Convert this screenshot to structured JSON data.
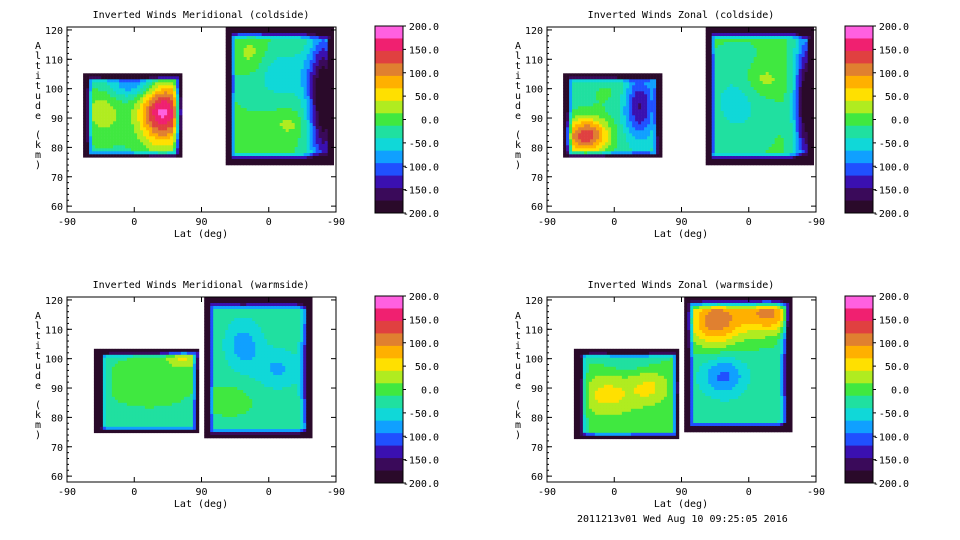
{
  "chart_data": [
    {
      "type": "heatmap",
      "title": "Inverted Winds Meridional (coldside)",
      "xlabel": "Lat (deg)",
      "ylabel": "Altitude (km)",
      "x_ticks": [
        "-90",
        "0",
        "90",
        "0",
        "-90"
      ],
      "y_ticks": [
        "60",
        "70",
        "80",
        "90",
        "100",
        "110",
        "120"
      ],
      "ylim": [
        58,
        121
      ],
      "colorbar_ticks": [
        "200.0",
        "150.0",
        "100.0",
        "50.0",
        "0.0",
        "-50.0",
        "-100.0",
        "-150.0",
        "-200.0"
      ],
      "colorbar_range": [
        -200,
        200
      ],
      "contour_lines": true
    },
    {
      "type": "heatmap",
      "title": "Inverted Winds Zonal (coldside)",
      "xlabel": "Lat (deg)",
      "ylabel": "Altitude (km)",
      "x_ticks": [
        "-90",
        "0",
        "90",
        "0",
        "-90"
      ],
      "y_ticks": [
        "60",
        "70",
        "80",
        "90",
        "100",
        "110",
        "120"
      ],
      "ylim": [
        58,
        121
      ],
      "colorbar_ticks": [
        "200.0",
        "150.0",
        "100.0",
        "50.0",
        "0.0",
        "-50.0",
        "-100.0",
        "-150.0",
        "-200.0"
      ],
      "colorbar_range": [
        -200,
        200
      ],
      "contour_lines": true
    },
    {
      "type": "heatmap",
      "title": "Inverted Winds Meridional (warmside)",
      "xlabel": "Lat (deg)",
      "ylabel": "Altitude (km)",
      "x_ticks": [
        "-90",
        "0",
        "90",
        "0",
        "-90"
      ],
      "y_ticks": [
        "60",
        "70",
        "80",
        "90",
        "100",
        "110",
        "120"
      ],
      "ylim": [
        58,
        121
      ],
      "colorbar_ticks": [
        "200.0",
        "150.0",
        "100.0",
        "50.0",
        "0.0",
        "-50.0",
        "-100.0",
        "-150.0",
        "-200.0"
      ],
      "colorbar_range": [
        -200,
        200
      ],
      "contour_lines": true
    },
    {
      "type": "heatmap",
      "title": "Inverted Winds Zonal (warmside)",
      "xlabel": "Lat (deg)",
      "ylabel": "Altitude (km)",
      "x_ticks": [
        "-90",
        "0",
        "90",
        "0",
        "-90"
      ],
      "y_ticks": [
        "60",
        "70",
        "80",
        "90",
        "100",
        "110",
        "120"
      ],
      "ylim": [
        58,
        121
      ],
      "colorbar_ticks": [
        "200.0",
        "150.0",
        "100.0",
        "50.0",
        "0.0",
        "-50.0",
        "-100.0",
        "-150.0",
        "-200.0"
      ],
      "colorbar_range": [
        -200,
        200
      ],
      "contour_lines": true
    }
  ],
  "footer": "2011213v01 Wed Aug 10 09:25:05 2016",
  "colors": {
    "palette": [
      "#2a0a2a",
      "#3a0a5a",
      "#3a10b0",
      "#2050ff",
      "#10a0ff",
      "#10d8d8",
      "#20e0a0",
      "#40e840",
      "#b0ec20",
      "#ffe000",
      "#ffb000",
      "#e08030",
      "#e04040",
      "#f02070",
      "#ff60e0"
    ],
    "background": "#ffffff",
    "axes": "#000000"
  }
}
